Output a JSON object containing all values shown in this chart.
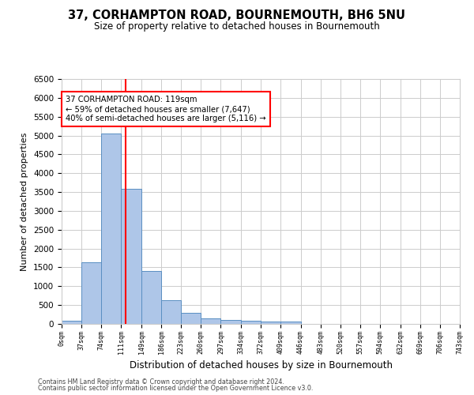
{
  "title_line1": "37, CORHAMPTON ROAD, BOURNEMOUTH, BH6 5NU",
  "title_line2": "Size of property relative to detached houses in Bournemouth",
  "xlabel": "Distribution of detached houses by size in Bournemouth",
  "ylabel": "Number of detached properties",
  "footer_line1": "Contains HM Land Registry data © Crown copyright and database right 2024.",
  "footer_line2": "Contains public sector information licensed under the Open Government Licence v3.0.",
  "bar_edges": [
    0,
    37,
    74,
    111,
    149,
    186,
    223,
    260,
    297,
    334,
    372,
    409,
    446,
    483,
    520,
    557,
    594,
    632,
    669,
    706,
    743
  ],
  "bar_heights": [
    75,
    1640,
    5060,
    3590,
    1410,
    620,
    290,
    145,
    110,
    75,
    55,
    55,
    0,
    0,
    0,
    0,
    0,
    0,
    0,
    0
  ],
  "bar_color": "#aec6e8",
  "bar_edgecolor": "#5a8fc2",
  "property_value": 119,
  "vline_color": "red",
  "annotation_text": "37 CORHAMPTON ROAD: 119sqm\n← 59% of detached houses are smaller (7,647)\n40% of semi-detached houses are larger (5,116) →",
  "annotation_box_edgecolor": "red",
  "annotation_box_facecolor": "white",
  "ylim": [
    0,
    6500
  ],
  "grid_color": "#cccccc",
  "background_color": "white",
  "tick_labels": [
    "0sqm",
    "37sqm",
    "74sqm",
    "111sqm",
    "149sqm",
    "186sqm",
    "223sqm",
    "260sqm",
    "297sqm",
    "334sqm",
    "372sqm",
    "409sqm",
    "446sqm",
    "483sqm",
    "520sqm",
    "557sqm",
    "594sqm",
    "632sqm",
    "669sqm",
    "706sqm",
    "743sqm"
  ]
}
